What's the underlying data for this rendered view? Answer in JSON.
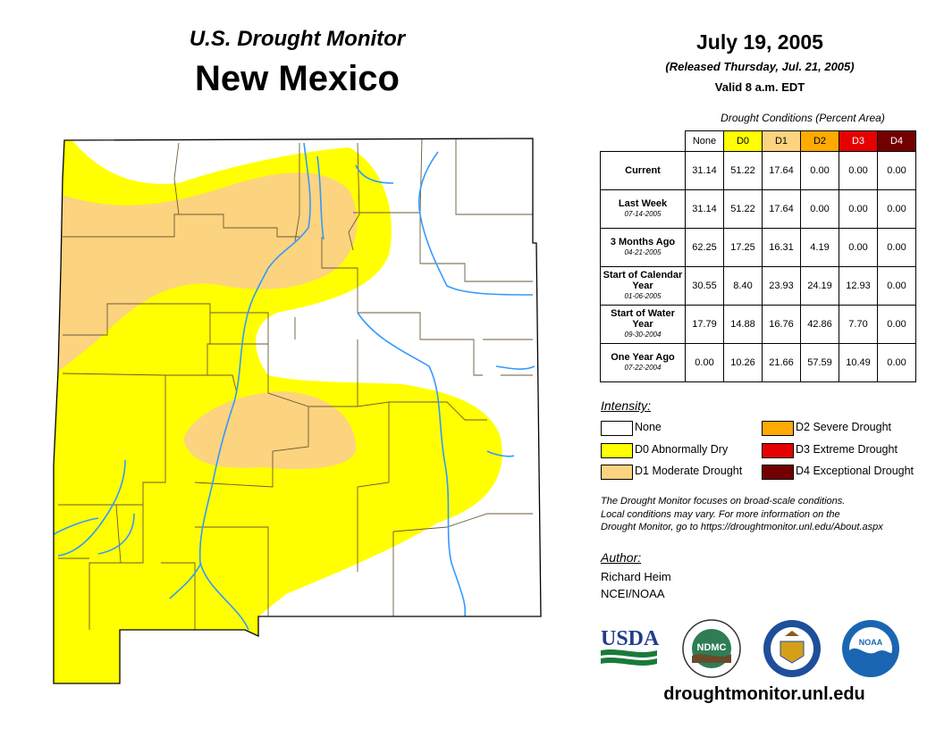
{
  "header": {
    "subtitle": "U.S. Drought Monitor",
    "state": "New Mexico",
    "date": "July 19, 2005",
    "released": "(Released Thursday, Jul. 21, 2005)",
    "valid": "Valid 8 a.m. EDT"
  },
  "table": {
    "caption": "Drought Conditions (Percent Area)",
    "columns": [
      {
        "label": "None",
        "color": "#ffffff"
      },
      {
        "label": "D0",
        "color": "#ffff00"
      },
      {
        "label": "D1",
        "color": "#fcd37f"
      },
      {
        "label": "D2",
        "color": "#ffaa00"
      },
      {
        "label": "D3",
        "color": "#e60000"
      },
      {
        "label": "D4",
        "color": "#730000"
      }
    ],
    "rows": [
      {
        "label": "Current",
        "date": "",
        "values": [
          "31.14",
          "51.22",
          "17.64",
          "0.00",
          "0.00",
          "0.00"
        ]
      },
      {
        "label": "Last Week",
        "date": "07-14-2005",
        "values": [
          "31.14",
          "51.22",
          "17.64",
          "0.00",
          "0.00",
          "0.00"
        ]
      },
      {
        "label": "3 Months Ago",
        "date": "04-21-2005",
        "values": [
          "62.25",
          "17.25",
          "16.31",
          "4.19",
          "0.00",
          "0.00"
        ]
      },
      {
        "label": "Start of Calendar Year",
        "date": "01-06-2005",
        "values": [
          "30.55",
          "8.40",
          "23.93",
          "24.19",
          "12.93",
          "0.00"
        ]
      },
      {
        "label": "Start of Water Year",
        "date": "09-30-2004",
        "values": [
          "17.79",
          "14.88",
          "16.76",
          "42.86",
          "7.70",
          "0.00"
        ]
      },
      {
        "label": "One Year Ago",
        "date": "07-22-2004",
        "values": [
          "0.00",
          "10.26",
          "21.66",
          "57.59",
          "10.49",
          "0.00"
        ]
      }
    ]
  },
  "legend": {
    "title": "Intensity:",
    "items": [
      {
        "label": "None",
        "color": "#ffffff"
      },
      {
        "label": "D0 Abnormally Dry",
        "color": "#ffff00"
      },
      {
        "label": "D1 Moderate Drought",
        "color": "#fcd37f"
      },
      {
        "label": "D2 Severe Drought",
        "color": "#ffaa00"
      },
      {
        "label": "D3 Extreme Drought",
        "color": "#e60000"
      },
      {
        "label": "D4 Exceptional Drought",
        "color": "#730000"
      }
    ]
  },
  "note": {
    "line1": "The Drought Monitor focuses on broad-scale conditions.",
    "line2": "Local conditions may vary. For more information on the",
    "line3": "Drought Monitor, go to https://droughtmonitor.unl.edu/About.aspx"
  },
  "author": {
    "title": "Author:",
    "name": "Richard Heim",
    "org": "NCEI/NOAA"
  },
  "logos": {
    "usda": "USDA",
    "ndmc": "NDMC",
    "noaa": "NOAA"
  },
  "footer_url": "droughtmonitor.unl.edu",
  "colors": {
    "none": "#ffffff",
    "d0": "#ffff00",
    "d1": "#fcd37f",
    "river": "#3399ff"
  }
}
